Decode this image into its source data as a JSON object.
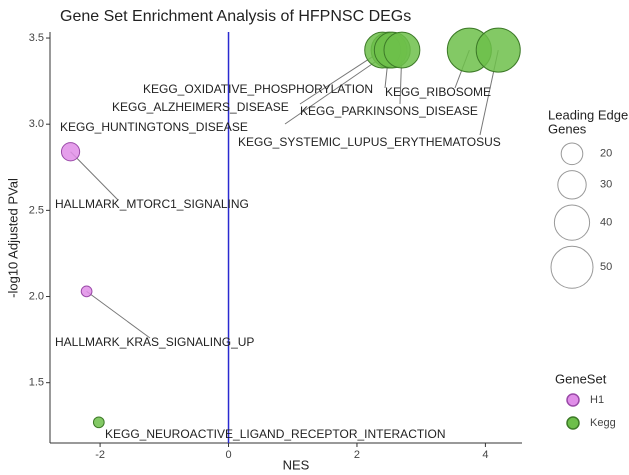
{
  "chart_data": {
    "type": "bubble",
    "title": "Gene Set Enrichment Analysis of HFPNSC DEGs",
    "x_label": "NES",
    "y_label": "-log10 Adjusted PVal",
    "xlim": [
      -2.78,
      4.57
    ],
    "ylim": [
      1.15,
      3.535
    ],
    "xticks": [
      -2,
      0,
      2,
      4
    ],
    "yticks": [
      1.5,
      {
        "value": 2,
        "label": "2.0"
      },
      2.5,
      {
        "value": 3,
        "label": "3.0"
      },
      3.5
    ],
    "reference_line_x": 0,
    "reference_line_color": "#2a2ad0",
    "series": [
      {
        "name": "H1",
        "color": "#e08ee8",
        "stroke": "#9a4aa8",
        "labels": [
          "HALLMARK_MTORC1_SIGNALING",
          "HALLMARK_KRAS_SIGNALING_UP"
        ],
        "x": [
          -2.46,
          -2.21
        ],
        "values": [
          2.84,
          2.03
        ],
        "sizes": [
          15,
          4
        ]
      },
      {
        "name": "Kegg",
        "color": "#6dbf4a",
        "stroke": "#3d7a28",
        "labels": [
          "KEGG_NEUROACTIVE_LIGAND_RECEPTOR_INTERACTION",
          "KEGG_OXIDATIVE_PHOSPHORYLATION",
          "KEGG_ALZHEIMERS_DISEASE",
          "KEGG_HUNTINGTONS_DISEASE",
          "KEGG_PARKINSONS_DISEASE",
          "KEGG_RIBOSOME",
          "KEGG_SYSTEMIC_LUPUS_ERYTHEMATOSUS"
        ],
        "x": [
          -2.02,
          2.5,
          2.4,
          2.55,
          2.7,
          3.75,
          4.2
        ],
        "values": [
          1.27,
          3.43,
          3.43,
          3.43,
          3.43,
          3.43,
          3.43
        ],
        "sizes": [
          4,
          41,
          41,
          41,
          41,
          53,
          53
        ]
      }
    ],
    "size_legend_title": [
      "Leading Edge",
      "Genes"
    ],
    "size_legend": [
      20,
      30,
      40,
      50
    ],
    "color_legend_title": "GeneSet"
  }
}
